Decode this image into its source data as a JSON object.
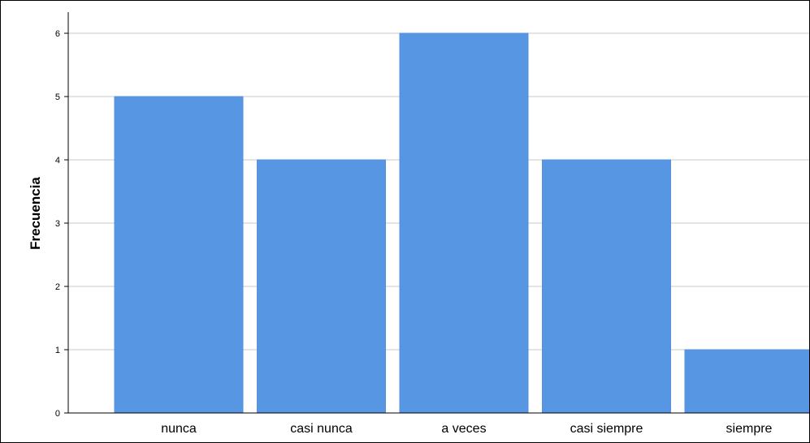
{
  "chart_data": {
    "type": "bar",
    "title": "",
    "xlabel": "",
    "ylabel": "Frecuencia",
    "categories": [
      "nunca",
      "casi nunca",
      "a veces",
      "casi siempre",
      "siempre"
    ],
    "values": [
      5,
      4,
      6,
      4,
      1
    ],
    "ylim": [
      0,
      6.4
    ],
    "yticks": [
      0,
      1,
      2,
      3,
      4,
      5,
      6
    ],
    "grid": true,
    "legend": "none"
  },
  "colors": {
    "bar": "#5796e3",
    "bar_stroke": "#5890d8",
    "grid": "#c8c8c8",
    "axis": "#000000",
    "text": "#000000"
  }
}
